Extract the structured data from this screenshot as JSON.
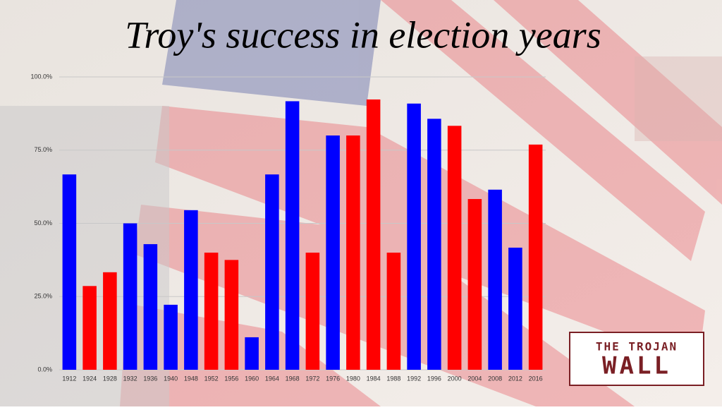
{
  "chart_data": {
    "type": "bar",
    "title": "Troy's success in election years",
    "categories": [
      "1912",
      "1924",
      "1928",
      "1932",
      "1936",
      "1940",
      "1948",
      "1952",
      "1956",
      "1960",
      "1964",
      "1968",
      "1972",
      "1976",
      "1980",
      "1984",
      "1988",
      "1992",
      "1996",
      "2000",
      "2004",
      "2008",
      "2012",
      "2016"
    ],
    "values": [
      66.7,
      28.6,
      33.3,
      50,
      42.9,
      22.2,
      54.5,
      40,
      37.5,
      11.1,
      66.7,
      91.7,
      40,
      80,
      80,
      92.3,
      40,
      90.9,
      85.7,
      83.3,
      58.3,
      61.5,
      41.7,
      76.9
    ],
    "colors": [
      "#0000ff",
      "#ff0000",
      "#ff0000",
      "#0000ff",
      "#0000ff",
      "#0000ff",
      "#0000ff",
      "#ff0000",
      "#ff0000",
      "#0000ff",
      "#0000ff",
      "#0000ff",
      "#ff0000",
      "#0000ff",
      "#ff0000",
      "#ff0000",
      "#ff0000",
      "#0000ff",
      "#0000ff",
      "#ff0000",
      "#ff0000",
      "#0000ff",
      "#0000ff",
      "#ff0000"
    ],
    "ylim": [
      0,
      100
    ],
    "yticks": [
      {
        "value": 0,
        "label": "0.0%"
      },
      {
        "value": 25,
        "label": "25.0%"
      },
      {
        "value": 50,
        "label": "50.0%"
      },
      {
        "value": 75,
        "label": "75.0%"
      },
      {
        "value": 100,
        "label": "100.0%"
      }
    ],
    "grid": true
  },
  "logo": {
    "line1": "THE TROJAN",
    "line2": "WALL"
  }
}
